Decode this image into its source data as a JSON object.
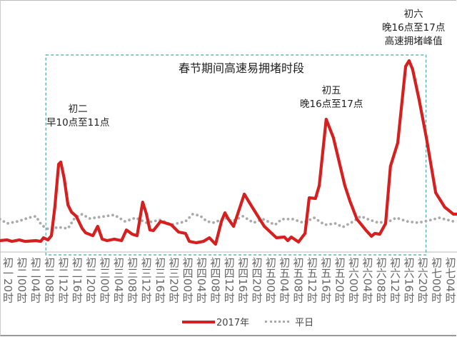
{
  "chart_data": {
    "type": "line",
    "title": "",
    "xlabel": "",
    "ylabel": "",
    "x_unit": "hours since 初一20时",
    "xlim": [
      -2.3,
      130
    ],
    "ylim": [
      0,
      100
    ],
    "grid": false,
    "x_ticks": [
      {
        "x": 0,
        "label": "初一20时"
      },
      {
        "x": 4,
        "label": "初二00时"
      },
      {
        "x": 8,
        "label": "初二04时"
      },
      {
        "x": 12,
        "label": "初二08时"
      },
      {
        "x": 16,
        "label": "初二12时"
      },
      {
        "x": 20,
        "label": "初二16时"
      },
      {
        "x": 24,
        "label": "初二20时"
      },
      {
        "x": 28,
        "label": "初三00时"
      },
      {
        "x": 32,
        "label": "初三04时"
      },
      {
        "x": 36,
        "label": "初三08时"
      },
      {
        "x": 40,
        "label": "初三12时"
      },
      {
        "x": 44,
        "label": "初三16时"
      },
      {
        "x": 48,
        "label": "初三20时"
      },
      {
        "x": 52,
        "label": "初四00时"
      },
      {
        "x": 56,
        "label": "初四04时"
      },
      {
        "x": 60,
        "label": "初四08时"
      },
      {
        "x": 64,
        "label": "初四12时"
      },
      {
        "x": 68,
        "label": "初四16时"
      },
      {
        "x": 72,
        "label": "初四20时"
      },
      {
        "x": 76,
        "label": "初五00时"
      },
      {
        "x": 80,
        "label": "初五04时"
      },
      {
        "x": 84,
        "label": "初五08时"
      },
      {
        "x": 88,
        "label": "初五12时"
      },
      {
        "x": 92,
        "label": "初五16时"
      },
      {
        "x": 96,
        "label": "初五20时"
      },
      {
        "x": 100,
        "label": "初六00时"
      },
      {
        "x": 104,
        "label": "初六04时"
      },
      {
        "x": 108,
        "label": "初六08时"
      },
      {
        "x": 112,
        "label": "初六12时"
      },
      {
        "x": 116,
        "label": "初六16时"
      },
      {
        "x": 120,
        "label": "初六20时"
      },
      {
        "x": 124,
        "label": "初七00时"
      },
      {
        "x": 128,
        "label": "初七04时"
      }
    ],
    "series": [
      {
        "name": "2017年",
        "color": "#d61f1f",
        "style": "solid",
        "points": [
          [
            -2.3,
            5.6
          ],
          [
            -0.2,
            6.0
          ],
          [
            1.2,
            5.2
          ],
          [
            3.3,
            6.0
          ],
          [
            5.0,
            5.2
          ],
          [
            8.1,
            5.6
          ],
          [
            9.5,
            5.2
          ],
          [
            10.3,
            7.1
          ],
          [
            11.6,
            6.0
          ],
          [
            12.6,
            8.2
          ],
          [
            13.6,
            23.2
          ],
          [
            14.7,
            45.7
          ],
          [
            15.3,
            46.8
          ],
          [
            16.3,
            38.2
          ],
          [
            17.4,
            24.3
          ],
          [
            18.4,
            20.6
          ],
          [
            19.8,
            18.4
          ],
          [
            21.5,
            12.0
          ],
          [
            22.5,
            9.7
          ],
          [
            24.6,
            8.2
          ],
          [
            26.0,
            13.1
          ],
          [
            27.3,
            6.4
          ],
          [
            28.7,
            5.6
          ],
          [
            30.8,
            6.4
          ],
          [
            32.9,
            5.6
          ],
          [
            34.3,
            11.2
          ],
          [
            36.0,
            9.0
          ],
          [
            37.4,
            8.2
          ],
          [
            39.0,
            25.8
          ],
          [
            40.1,
            19.5
          ],
          [
            41.1,
            11.2
          ],
          [
            42.1,
            10.9
          ],
          [
            44.2,
            15.7
          ],
          [
            47.3,
            13.9
          ],
          [
            49.4,
            10.1
          ],
          [
            51.4,
            9.4
          ],
          [
            52.5,
            5.2
          ],
          [
            54.5,
            4.5
          ],
          [
            56.6,
            5.2
          ],
          [
            58.3,
            7.1
          ],
          [
            60.1,
            3.7
          ],
          [
            61.8,
            15.7
          ],
          [
            62.8,
            20.2
          ],
          [
            63.8,
            16.9
          ],
          [
            65.3,
            13.1
          ],
          [
            68.4,
            30.0
          ],
          [
            70.7,
            23.2
          ],
          [
            74.2,
            13.1
          ],
          [
            77.7,
            7.1
          ],
          [
            80.0,
            7.5
          ],
          [
            81.0,
            5.6
          ],
          [
            82.0,
            7.5
          ],
          [
            84.1,
            4.9
          ],
          [
            86.0,
            9.4
          ],
          [
            87.2,
            28.1
          ],
          [
            89.0,
            27.7
          ],
          [
            90.1,
            34.5
          ],
          [
            92.1,
            69.3
          ],
          [
            94.2,
            59.6
          ],
          [
            97.5,
            34.5
          ],
          [
            99.0,
            26.2
          ],
          [
            101.0,
            16.9
          ],
          [
            103.7,
            10.9
          ],
          [
            105.2,
            7.9
          ],
          [
            106.2,
            9.4
          ],
          [
            107.6,
            9.0
          ],
          [
            109.3,
            14.6
          ],
          [
            110.7,
            44.6
          ],
          [
            112.8,
            56.9
          ],
          [
            115.1,
            97.0
          ],
          [
            116.1,
            100.0
          ],
          [
            117.1,
            95.5
          ],
          [
            119.0,
            79.4
          ],
          [
            121.1,
            59.6
          ],
          [
            123.8,
            30.7
          ],
          [
            126.4,
            23.2
          ],
          [
            128.9,
            19.5
          ],
          [
            130.0,
            19.5
          ]
        ]
      },
      {
        "name": "平日",
        "color": "#aaaaaa",
        "style": "dotted",
        "points": [
          [
            -2.3,
            16.9
          ],
          [
            -0.2,
            14.6
          ],
          [
            2.9,
            15.7
          ],
          [
            6.0,
            17.6
          ],
          [
            8.1,
            18.4
          ],
          [
            9.7,
            13.9
          ],
          [
            11.2,
            12.0
          ],
          [
            12.6,
            11.2
          ],
          [
            14.3,
            12.7
          ],
          [
            17.4,
            12.0
          ],
          [
            19.4,
            17.6
          ],
          [
            21.5,
            19.5
          ],
          [
            23.6,
            17.2
          ],
          [
            26.7,
            18.0
          ],
          [
            30.8,
            19.1
          ],
          [
            33.9,
            15.7
          ],
          [
            37.0,
            17.6
          ],
          [
            40.1,
            15.0
          ],
          [
            44.2,
            16.5
          ],
          [
            47.3,
            13.9
          ],
          [
            51.4,
            15.7
          ],
          [
            53.5,
            19.5
          ],
          [
            55.6,
            18.7
          ],
          [
            57.6,
            15.7
          ],
          [
            59.7,
            15.0
          ],
          [
            62.8,
            17.6
          ],
          [
            64.9,
            15.7
          ],
          [
            68.0,
            18.4
          ],
          [
            71.1,
            15.0
          ],
          [
            73.8,
            16.9
          ],
          [
            77.3,
            13.9
          ],
          [
            79.3,
            16.9
          ],
          [
            82.4,
            16.9
          ],
          [
            85.5,
            15.0
          ],
          [
            88.6,
            17.6
          ],
          [
            91.7,
            13.9
          ],
          [
            94.8,
            14.6
          ],
          [
            96.9,
            12.7
          ],
          [
            100.0,
            15.7
          ],
          [
            102.1,
            18.4
          ],
          [
            104.1,
            16.9
          ],
          [
            107.2,
            15.0
          ],
          [
            110.3,
            15.7
          ],
          [
            112.4,
            17.6
          ],
          [
            115.5,
            15.7
          ],
          [
            118.6,
            15.0
          ],
          [
            121.7,
            16.1
          ],
          [
            124.8,
            17.6
          ],
          [
            128.9,
            15.7
          ],
          [
            130.0,
            15.7
          ]
        ]
      }
    ],
    "legend_placement": "bottom-center",
    "highlight_region": {
      "x_range": [
        11,
        121
      ],
      "label": "春节期间高速易拥堵时段"
    },
    "annotations": [
      {
        "lines": [
          "初二",
          "早10点至11点"
        ]
      },
      {
        "lines": [
          "初五",
          "晚16点至17点"
        ]
      },
      {
        "lines": [
          "初六",
          "晚16点至17点",
          "高速拥堵峰值"
        ]
      }
    ]
  }
}
